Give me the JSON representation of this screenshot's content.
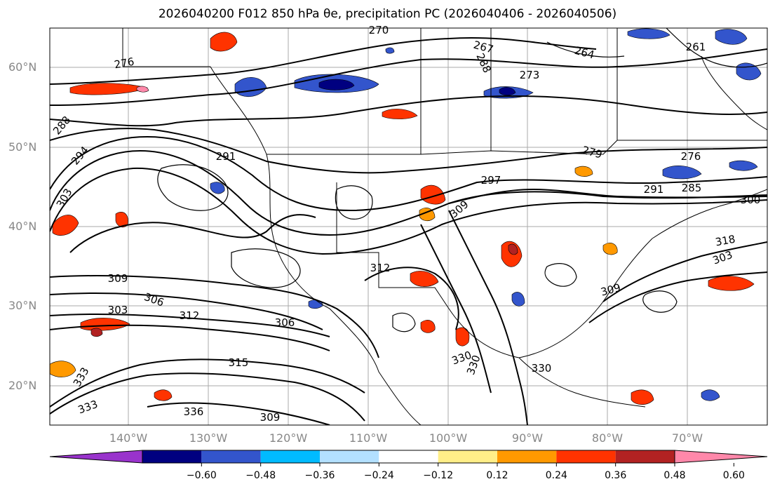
{
  "title": "2026040200 F012 850 hPa θe, precipitation PC (2026040406 - 2026040506)",
  "lat_labels": [
    "60°N",
    "50°N",
    "40°N",
    "30°N",
    "20°N"
  ],
  "lon_labels": [
    "140°W",
    "130°W",
    "120°W",
    "110°W",
    "100°W",
    "90°W",
    "80°W",
    "70°W"
  ],
  "contour_labels": [
    "276",
    "270",
    "267",
    "264",
    "261",
    "273",
    "288",
    "294",
    "291",
    "303",
    "279",
    "276",
    "288",
    "297",
    "309",
    "291",
    "285",
    "300",
    "312",
    "318",
    "309",
    "303",
    "306",
    "312",
    "306",
    "309",
    "303",
    "315",
    "336",
    "333",
    "330",
    "330",
    "330",
    "309",
    "333"
  ],
  "colorbar": {
    "ticks": [
      "-0.60",
      "-0.48",
      "-0.36",
      "-0.24",
      "-0.12",
      "0.12",
      "0.24",
      "0.36",
      "0.48",
      "0.60"
    ],
    "colors": [
      "#9933cc",
      "#000080",
      "#3355cc",
      "#00bbff",
      "#b3e0ff",
      "#ffffff",
      "#ffee88",
      "#ff9900",
      "#ff3300",
      "#b22222",
      "#ff88aa"
    ]
  }
}
